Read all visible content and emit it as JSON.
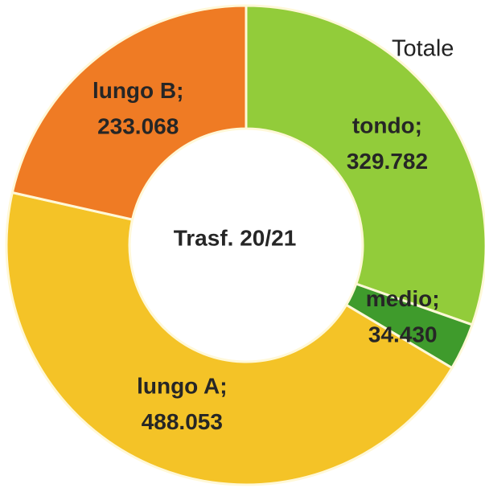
{
  "chart_data": {
    "type": "donut",
    "title": "Totale",
    "center_label": "Trasf. 20/21",
    "label_separator": ";",
    "categories": [
      "tondo",
      "medio",
      "lungo A",
      "lungo B"
    ],
    "values": [
      329782,
      34430,
      488053,
      233068
    ],
    "value_labels": [
      "329.782",
      "34.430",
      "488.053",
      "233.068"
    ],
    "colors": [
      "#92cc3a",
      "#3f9b2c",
      "#f4c327",
      "#ef7b24"
    ]
  }
}
